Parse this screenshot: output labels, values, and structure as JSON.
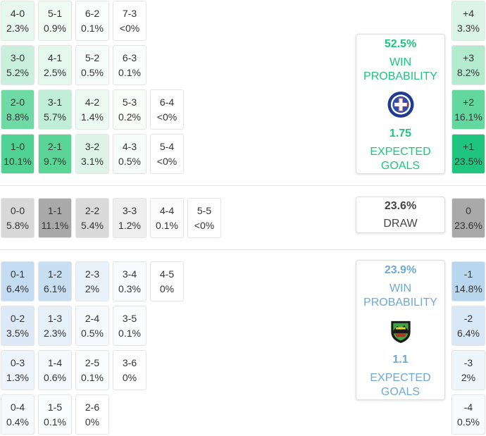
{
  "colors": {
    "home_accent": "#1fc47e",
    "away_accent": "#6fa9d3",
    "draw_accent": "#444444"
  },
  "home_scores": [
    [
      {
        "score": "4-0",
        "pct": "2.3%",
        "bg": "#e6f8ef"
      },
      {
        "score": "5-1",
        "pct": "0.9%",
        "bg": "#f1fbf6"
      },
      {
        "score": "6-2",
        "pct": "0.1%",
        "bg": "#fafefc"
      },
      {
        "score": "7-3",
        "pct": "<0%",
        "bg": "#ffffff"
      }
    ],
    [
      {
        "score": "3-0",
        "pct": "5.2%",
        "bg": "#c9f0dc"
      },
      {
        "score": "4-1",
        "pct": "2.5%",
        "bg": "#e4f8ed"
      },
      {
        "score": "5-2",
        "pct": "0.5%",
        "bg": "#f6fcf9"
      },
      {
        "score": "6-3",
        "pct": "0.1%",
        "bg": "#fafefc"
      }
    ],
    [
      {
        "score": "2-0",
        "pct": "8.8%",
        "bg": "#6fdaa6"
      },
      {
        "score": "3-1",
        "pct": "5.7%",
        "bg": "#c0eed7"
      },
      {
        "score": "4-2",
        "pct": "1.4%",
        "bg": "#edf9f3"
      },
      {
        "score": "5-3",
        "pct": "0.2%",
        "bg": "#f8fdfa"
      },
      {
        "score": "6-4",
        "pct": "<0%",
        "bg": "#ffffff"
      }
    ],
    [
      {
        "score": "1-0",
        "pct": "10.1%",
        "bg": "#4fd293"
      },
      {
        "score": "2-1",
        "pct": "9.7%",
        "bg": "#5ad597"
      },
      {
        "score": "3-2",
        "pct": "3.1%",
        "bg": "#dcf5e8"
      },
      {
        "score": "4-3",
        "pct": "0.5%",
        "bg": "#f6fcf9"
      },
      {
        "score": "5-4",
        "pct": "<0%",
        "bg": "#ffffff"
      }
    ]
  ],
  "draw_scores": [
    {
      "score": "0-0",
      "pct": "5.8%",
      "bg": "#d8d8d8"
    },
    {
      "score": "1-1",
      "pct": "11.1%",
      "bg": "#a9a9a9"
    },
    {
      "score": "2-2",
      "pct": "5.4%",
      "bg": "#dadada"
    },
    {
      "score": "3-3",
      "pct": "1.2%",
      "bg": "#efefef"
    },
    {
      "score": "4-4",
      "pct": "0.1%",
      "bg": "#fbfbfb"
    },
    {
      "score": "5-5",
      "pct": "<0%",
      "bg": "#ffffff"
    }
  ],
  "away_scores": [
    [
      {
        "score": "0-1",
        "pct": "6.4%",
        "bg": "#c4dcf1"
      },
      {
        "score": "1-2",
        "pct": "6.1%",
        "bg": "#c8def2"
      },
      {
        "score": "2-3",
        "pct": "2%",
        "bg": "#e9f2fa"
      },
      {
        "score": "3-4",
        "pct": "0.3%",
        "bg": "#f8fbfd"
      },
      {
        "score": "4-5",
        "pct": "0%",
        "bg": "#ffffff"
      }
    ],
    [
      {
        "score": "0-2",
        "pct": "3.5%",
        "bg": "#dde9f6"
      },
      {
        "score": "1-3",
        "pct": "2.3%",
        "bg": "#e6f0f9"
      },
      {
        "score": "2-4",
        "pct": "0.5%",
        "bg": "#f6f9fd"
      },
      {
        "score": "3-5",
        "pct": "0.1%",
        "bg": "#fbfcfe"
      }
    ],
    [
      {
        "score": "0-3",
        "pct": "1.3%",
        "bg": "#eef4fb"
      },
      {
        "score": "1-4",
        "pct": "0.6%",
        "bg": "#f5f9fc"
      },
      {
        "score": "2-5",
        "pct": "0.1%",
        "bg": "#fbfcfe"
      },
      {
        "score": "3-6",
        "pct": "0%",
        "bg": "#ffffff"
      }
    ],
    [
      {
        "score": "0-4",
        "pct": "0.4%",
        "bg": "#f7fafd"
      },
      {
        "score": "1-5",
        "pct": "0.1%",
        "bg": "#fbfcfe"
      },
      {
        "score": "2-6",
        "pct": "0%",
        "bg": "#ffffff"
      }
    ]
  ],
  "home_margin": [
    {
      "margin": "+4",
      "pct": "3.3%",
      "bg": "#daf5e7"
    },
    {
      "margin": "+3",
      "pct": "8.2%",
      "bg": "#b2ebcd"
    },
    {
      "margin": "+2",
      "pct": "16.1%",
      "bg": "#63d89e"
    },
    {
      "margin": "+1",
      "pct": "23.5%",
      "bg": "#1fc47e"
    }
  ],
  "draw_margin": {
    "margin": "0",
    "pct": "23.6%",
    "bg": "#a9a9a9"
  },
  "away_margin": [
    {
      "margin": "-1",
      "pct": "14.8%",
      "bg": "#b8d6ee"
    },
    {
      "margin": "-2",
      "pct": "6.4%",
      "bg": "#d9e8f6"
    },
    {
      "margin": "-3",
      "pct": "2%",
      "bg": "#eef5fb"
    },
    {
      "margin": "-4",
      "pct": "0.5%",
      "bg": "#f8fbfd"
    }
  ],
  "home_card": {
    "win_pct": "52.5%",
    "win_label_1": "WIN",
    "win_label_2": "PROBABILITY",
    "logo_icon": "cruz-azul-crest-icon",
    "xg": "1.75",
    "xg_label_1": "EXPECTED",
    "xg_label_2": "GOALS"
  },
  "draw_card": {
    "pct": "23.6%",
    "label": "DRAW"
  },
  "away_card": {
    "win_pct": "23.9%",
    "win_label_1": "WIN",
    "win_label_2": "PROBABILITY",
    "logo_icon": "fc-juarez-crest-icon",
    "xg": "1.1",
    "xg_label_1": "EXPECTED",
    "xg_label_2": "GOALS"
  }
}
